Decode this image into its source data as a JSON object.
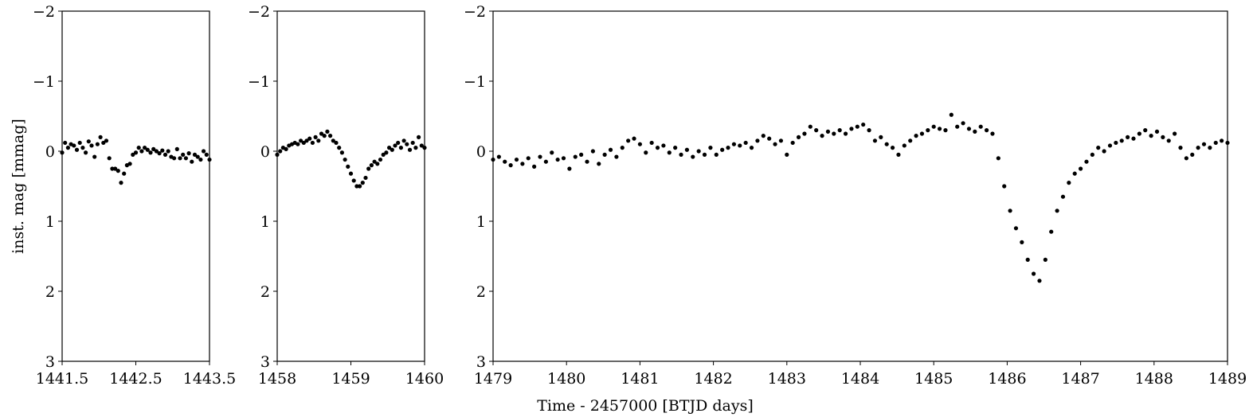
{
  "chart_data": [
    {
      "type": "scatter",
      "ylabel": "inst. mag [mmag]",
      "color": "#000000",
      "xlim": [
        1441.5,
        1443.5
      ],
      "xticks": [
        1441.5,
        1442.5,
        1443.5
      ],
      "ylim": [
        -2,
        3
      ],
      "yinverted": true,
      "yticks": [
        {
          "value": -2,
          "label": "−2"
        },
        {
          "value": -1,
          "label": "−1"
        },
        0,
        1,
        2,
        3
      ],
      "x": [
        1441.5,
        1441.54,
        1441.58,
        1441.62,
        1441.66,
        1441.7,
        1441.74,
        1441.78,
        1441.82,
        1441.86,
        1441.9,
        1441.94,
        1441.98,
        1442.02,
        1442.06,
        1442.1,
        1442.14,
        1442.18,
        1442.22,
        1442.26,
        1442.3,
        1442.34,
        1442.38,
        1442.42,
        1442.46,
        1442.5,
        1442.54,
        1442.58,
        1442.62,
        1442.66,
        1442.7,
        1442.74,
        1442.78,
        1442.82,
        1442.86,
        1442.9,
        1442.94,
        1442.98,
        1443.02,
        1443.06,
        1443.1,
        1443.14,
        1443.18,
        1443.22,
        1443.26,
        1443.3,
        1443.34,
        1443.38,
        1443.42,
        1443.46,
        1443.5
      ],
      "values": [
        0.02,
        -0.12,
        -0.05,
        -0.1,
        -0.08,
        -0.02,
        -0.12,
        -0.05,
        0.02,
        -0.14,
        -0.08,
        0.08,
        -0.1,
        -0.2,
        -0.12,
        -0.15,
        0.1,
        0.25,
        0.25,
        0.28,
        0.45,
        0.32,
        0.2,
        0.18,
        0.05,
        0.02,
        -0.05,
        0.0,
        -0.05,
        -0.02,
        0.02,
        -0.03,
        0.0,
        0.03,
        -0.01,
        0.05,
        0.0,
        0.08,
        0.1,
        -0.03,
        0.1,
        0.05,
        0.1,
        0.03,
        0.15,
        0.05,
        0.08,
        0.12,
        0.0,
        0.05,
        0.12
      ]
    },
    {
      "type": "scatter",
      "color": "#000000",
      "xlim": [
        1458,
        1460
      ],
      "xticks": [
        1458,
        1459,
        1460
      ],
      "ylim": [
        -2,
        3
      ],
      "yinverted": true,
      "yticks": [
        {
          "value": -2,
          "label": "−2"
        },
        {
          "value": -1,
          "label": "−1"
        },
        0,
        1,
        2,
        3
      ],
      "x": [
        1458.0,
        1458.04,
        1458.08,
        1458.12,
        1458.16,
        1458.2,
        1458.24,
        1458.28,
        1458.32,
        1458.36,
        1458.4,
        1458.44,
        1458.48,
        1458.52,
        1458.56,
        1458.6,
        1458.64,
        1458.68,
        1458.72,
        1458.76,
        1458.8,
        1458.84,
        1458.88,
        1458.92,
        1458.96,
        1459.0,
        1459.04,
        1459.08,
        1459.12,
        1459.16,
        1459.2,
        1459.24,
        1459.28,
        1459.32,
        1459.36,
        1459.4,
        1459.44,
        1459.48,
        1459.52,
        1459.56,
        1459.6,
        1459.64,
        1459.68,
        1459.72,
        1459.76,
        1459.8,
        1459.84,
        1459.88,
        1459.92,
        1459.96,
        1460.0
      ],
      "values": [
        0.05,
        0.0,
        -0.05,
        -0.03,
        -0.08,
        -0.1,
        -0.12,
        -0.1,
        -0.15,
        -0.12,
        -0.15,
        -0.18,
        -0.12,
        -0.2,
        -0.15,
        -0.25,
        -0.22,
        -0.28,
        -0.22,
        -0.15,
        -0.12,
        -0.05,
        0.02,
        0.12,
        0.22,
        0.32,
        0.42,
        0.5,
        0.5,
        0.45,
        0.38,
        0.25,
        0.2,
        0.15,
        0.18,
        0.12,
        0.05,
        0.02,
        -0.05,
        -0.02,
        -0.08,
        -0.12,
        -0.05,
        -0.15,
        -0.1,
        -0.02,
        -0.12,
        -0.05,
        -0.2,
        -0.08,
        -0.05
      ]
    },
    {
      "type": "scatter",
      "xlabel": "Time - 2457000 [BTJD days]",
      "color": "#000000",
      "xlim": [
        1479,
        1489
      ],
      "xticks": [
        1479,
        1480,
        1481,
        1482,
        1483,
        1484,
        1485,
        1486,
        1487,
        1488,
        1489
      ],
      "ylim": [
        -2,
        3
      ],
      "yinverted": true,
      "yticks": [
        {
          "value": -2,
          "label": "−2"
        },
        {
          "value": -1,
          "label": "−1"
        },
        0,
        1,
        2,
        3
      ],
      "x": [
        1479.0,
        1479.08,
        1479.16,
        1479.24,
        1479.32,
        1479.4,
        1479.48,
        1479.56,
        1479.64,
        1479.72,
        1479.8,
        1479.88,
        1479.96,
        1480.04,
        1480.12,
        1480.2,
        1480.28,
        1480.36,
        1480.44,
        1480.52,
        1480.6,
        1480.68,
        1480.76,
        1480.84,
        1480.92,
        1481.0,
        1481.08,
        1481.16,
        1481.24,
        1481.32,
        1481.4,
        1481.48,
        1481.56,
        1481.64,
        1481.72,
        1481.8,
        1481.88,
        1481.96,
        1482.04,
        1482.12,
        1482.2,
        1482.28,
        1482.36,
        1482.44,
        1482.52,
        1482.6,
        1482.68,
        1482.76,
        1482.84,
        1482.92,
        1483.0,
        1483.08,
        1483.16,
        1483.24,
        1483.32,
        1483.4,
        1483.48,
        1483.56,
        1483.64,
        1483.72,
        1483.8,
        1483.88,
        1483.96,
        1484.04,
        1484.12,
        1484.2,
        1484.28,
        1484.36,
        1484.44,
        1484.52,
        1484.6,
        1484.68,
        1484.76,
        1484.84,
        1484.92,
        1485.0,
        1485.08,
        1485.16,
        1485.24,
        1485.32,
        1485.4,
        1485.48,
        1485.56,
        1485.64,
        1485.72,
        1485.8,
        1485.88,
        1485.96,
        1486.04,
        1486.12,
        1486.2,
        1486.28,
        1486.36,
        1486.44,
        1486.52,
        1486.6,
        1486.68,
        1486.76,
        1486.84,
        1486.92,
        1487.0,
        1487.08,
        1487.16,
        1487.24,
        1487.32,
        1487.4,
        1487.48,
        1487.56,
        1487.64,
        1487.72,
        1487.8,
        1487.88,
        1487.96,
        1488.04,
        1488.12,
        1488.2,
        1488.28,
        1488.36,
        1488.44,
        1488.52,
        1488.6,
        1488.68,
        1488.76,
        1488.84,
        1488.92,
        1489.0
      ],
      "values": [
        0.12,
        0.08,
        0.15,
        0.2,
        0.12,
        0.18,
        0.1,
        0.22,
        0.08,
        0.15,
        0.02,
        0.12,
        0.1,
        0.25,
        0.08,
        0.05,
        0.15,
        0.0,
        0.18,
        0.05,
        -0.02,
        0.08,
        -0.05,
        -0.15,
        -0.18,
        -0.1,
        0.02,
        -0.12,
        -0.05,
        -0.08,
        0.02,
        -0.05,
        0.05,
        -0.02,
        0.08,
        0.0,
        0.05,
        -0.05,
        0.05,
        -0.02,
        -0.05,
        -0.1,
        -0.08,
        -0.12,
        -0.05,
        -0.15,
        -0.22,
        -0.18,
        -0.1,
        -0.15,
        0.05,
        -0.12,
        -0.2,
        -0.25,
        -0.35,
        -0.3,
        -0.22,
        -0.28,
        -0.25,
        -0.3,
        -0.25,
        -0.32,
        -0.35,
        -0.38,
        -0.3,
        -0.15,
        -0.2,
        -0.1,
        -0.05,
        0.05,
        -0.08,
        -0.15,
        -0.22,
        -0.25,
        -0.3,
        -0.35,
        -0.32,
        -0.3,
        -0.52,
        -0.35,
        -0.4,
        -0.32,
        -0.28,
        -0.35,
        -0.3,
        -0.25,
        0.1,
        0.5,
        0.85,
        1.1,
        1.3,
        1.55,
        1.75,
        1.85,
        1.55,
        1.15,
        0.85,
        0.65,
        0.45,
        0.32,
        0.25,
        0.15,
        0.05,
        -0.05,
        0.0,
        -0.08,
        -0.12,
        -0.15,
        -0.2,
        -0.18,
        -0.25,
        -0.3,
        -0.22,
        -0.28,
        -0.2,
        -0.15,
        -0.25,
        -0.05,
        0.1,
        0.05,
        -0.05,
        -0.1,
        -0.05,
        -0.12,
        -0.15,
        -0.12
      ]
    }
  ]
}
